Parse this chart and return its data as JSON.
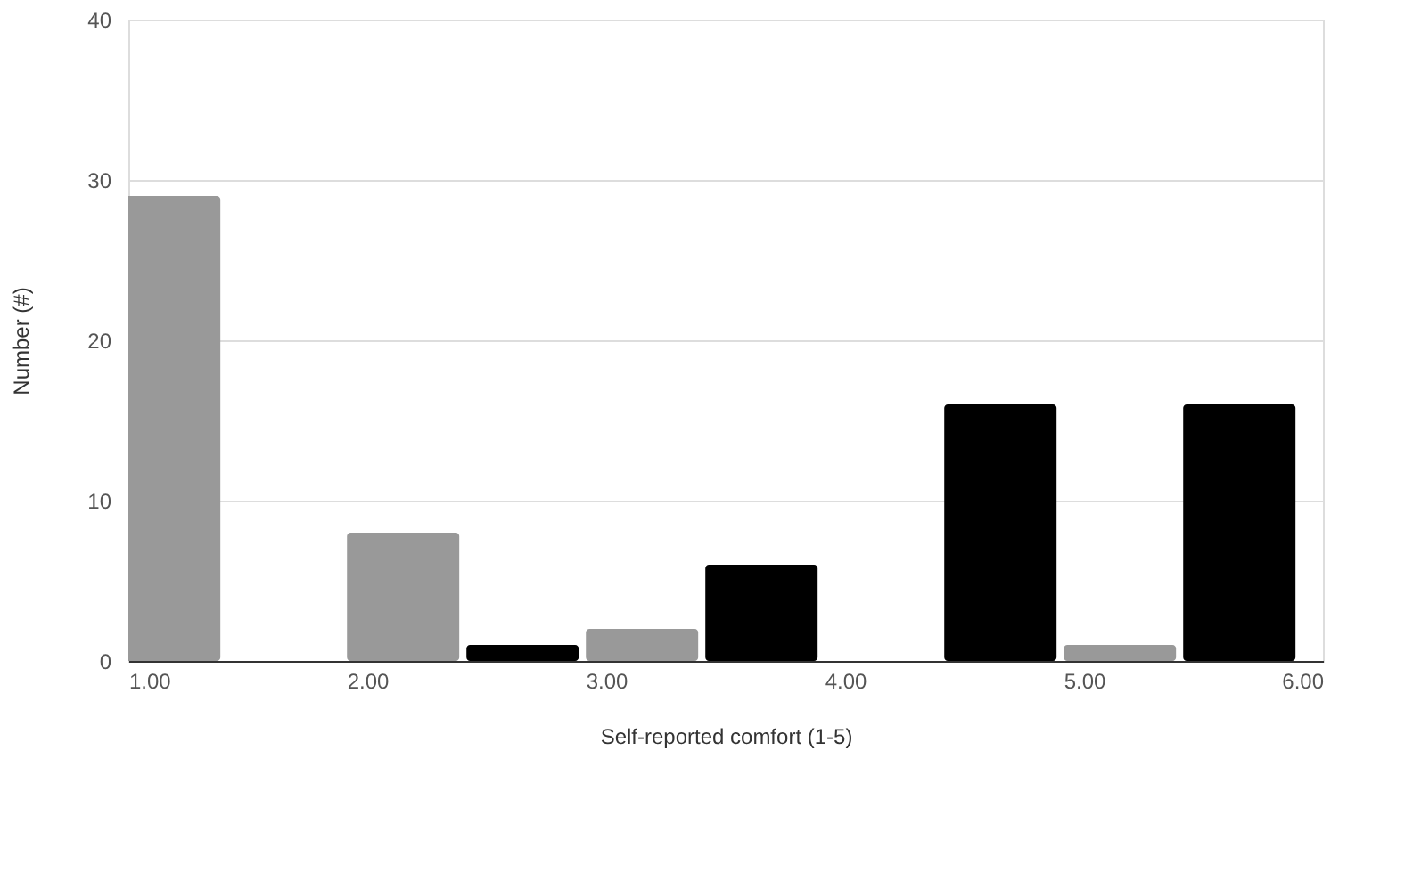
{
  "chart_data": {
    "type": "bar",
    "xlabel": "Self-reported comfort (1-5)",
    "ylabel": "Number (#)",
    "series": [
      {
        "color": "#999999",
        "x": [
          1.15,
          2.15,
          3.15,
          4.15,
          5.15
        ],
        "values": [
          29,
          8,
          2,
          0,
          1
        ]
      },
      {
        "color": "#000000",
        "x": [
          1.65,
          2.65,
          3.65,
          4.65,
          5.65
        ],
        "values": [
          0,
          1,
          6,
          16,
          16
        ]
      }
    ],
    "xlim": [
      1,
      6
    ],
    "xticks": [
      {
        "value": 1,
        "label": "1.00"
      },
      {
        "value": 2,
        "label": "2.00"
      },
      {
        "value": 3,
        "label": "3.00"
      },
      {
        "value": 4,
        "label": "4.00"
      },
      {
        "value": 5,
        "label": "5.00"
      },
      {
        "value": 6,
        "label": "6.00"
      }
    ],
    "ylim": [
      0,
      40
    ],
    "yticks": [
      0,
      10,
      20,
      30,
      40
    ],
    "grid": "y",
    "legend": false
  }
}
